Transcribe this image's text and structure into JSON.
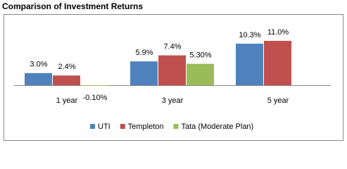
{
  "chart_data": {
    "type": "bar",
    "title": "Comparison of Investment Returns",
    "categories": [
      "1 year",
      "3 year",
      "5 year"
    ],
    "series": [
      {
        "name": "UTI",
        "color": "#4f81bd",
        "values": [
          3.0,
          5.9,
          10.3
        ],
        "value_labels": [
          "3.0%",
          "5.9%",
          "10.3%"
        ]
      },
      {
        "name": "Templeton",
        "color": "#c0504d",
        "values": [
          2.4,
          7.4,
          11.0
        ],
        "value_labels": [
          "2.4%",
          "7.4%",
          "11.0%"
        ]
      },
      {
        "name": "Tata (Moderate Plan)",
        "color": "#9bbb59",
        "values": [
          -0.1,
          5.3,
          null
        ],
        "value_labels": [
          "-0.10%",
          "5.30%",
          null
        ]
      }
    ],
    "legend": "bottom"
  }
}
